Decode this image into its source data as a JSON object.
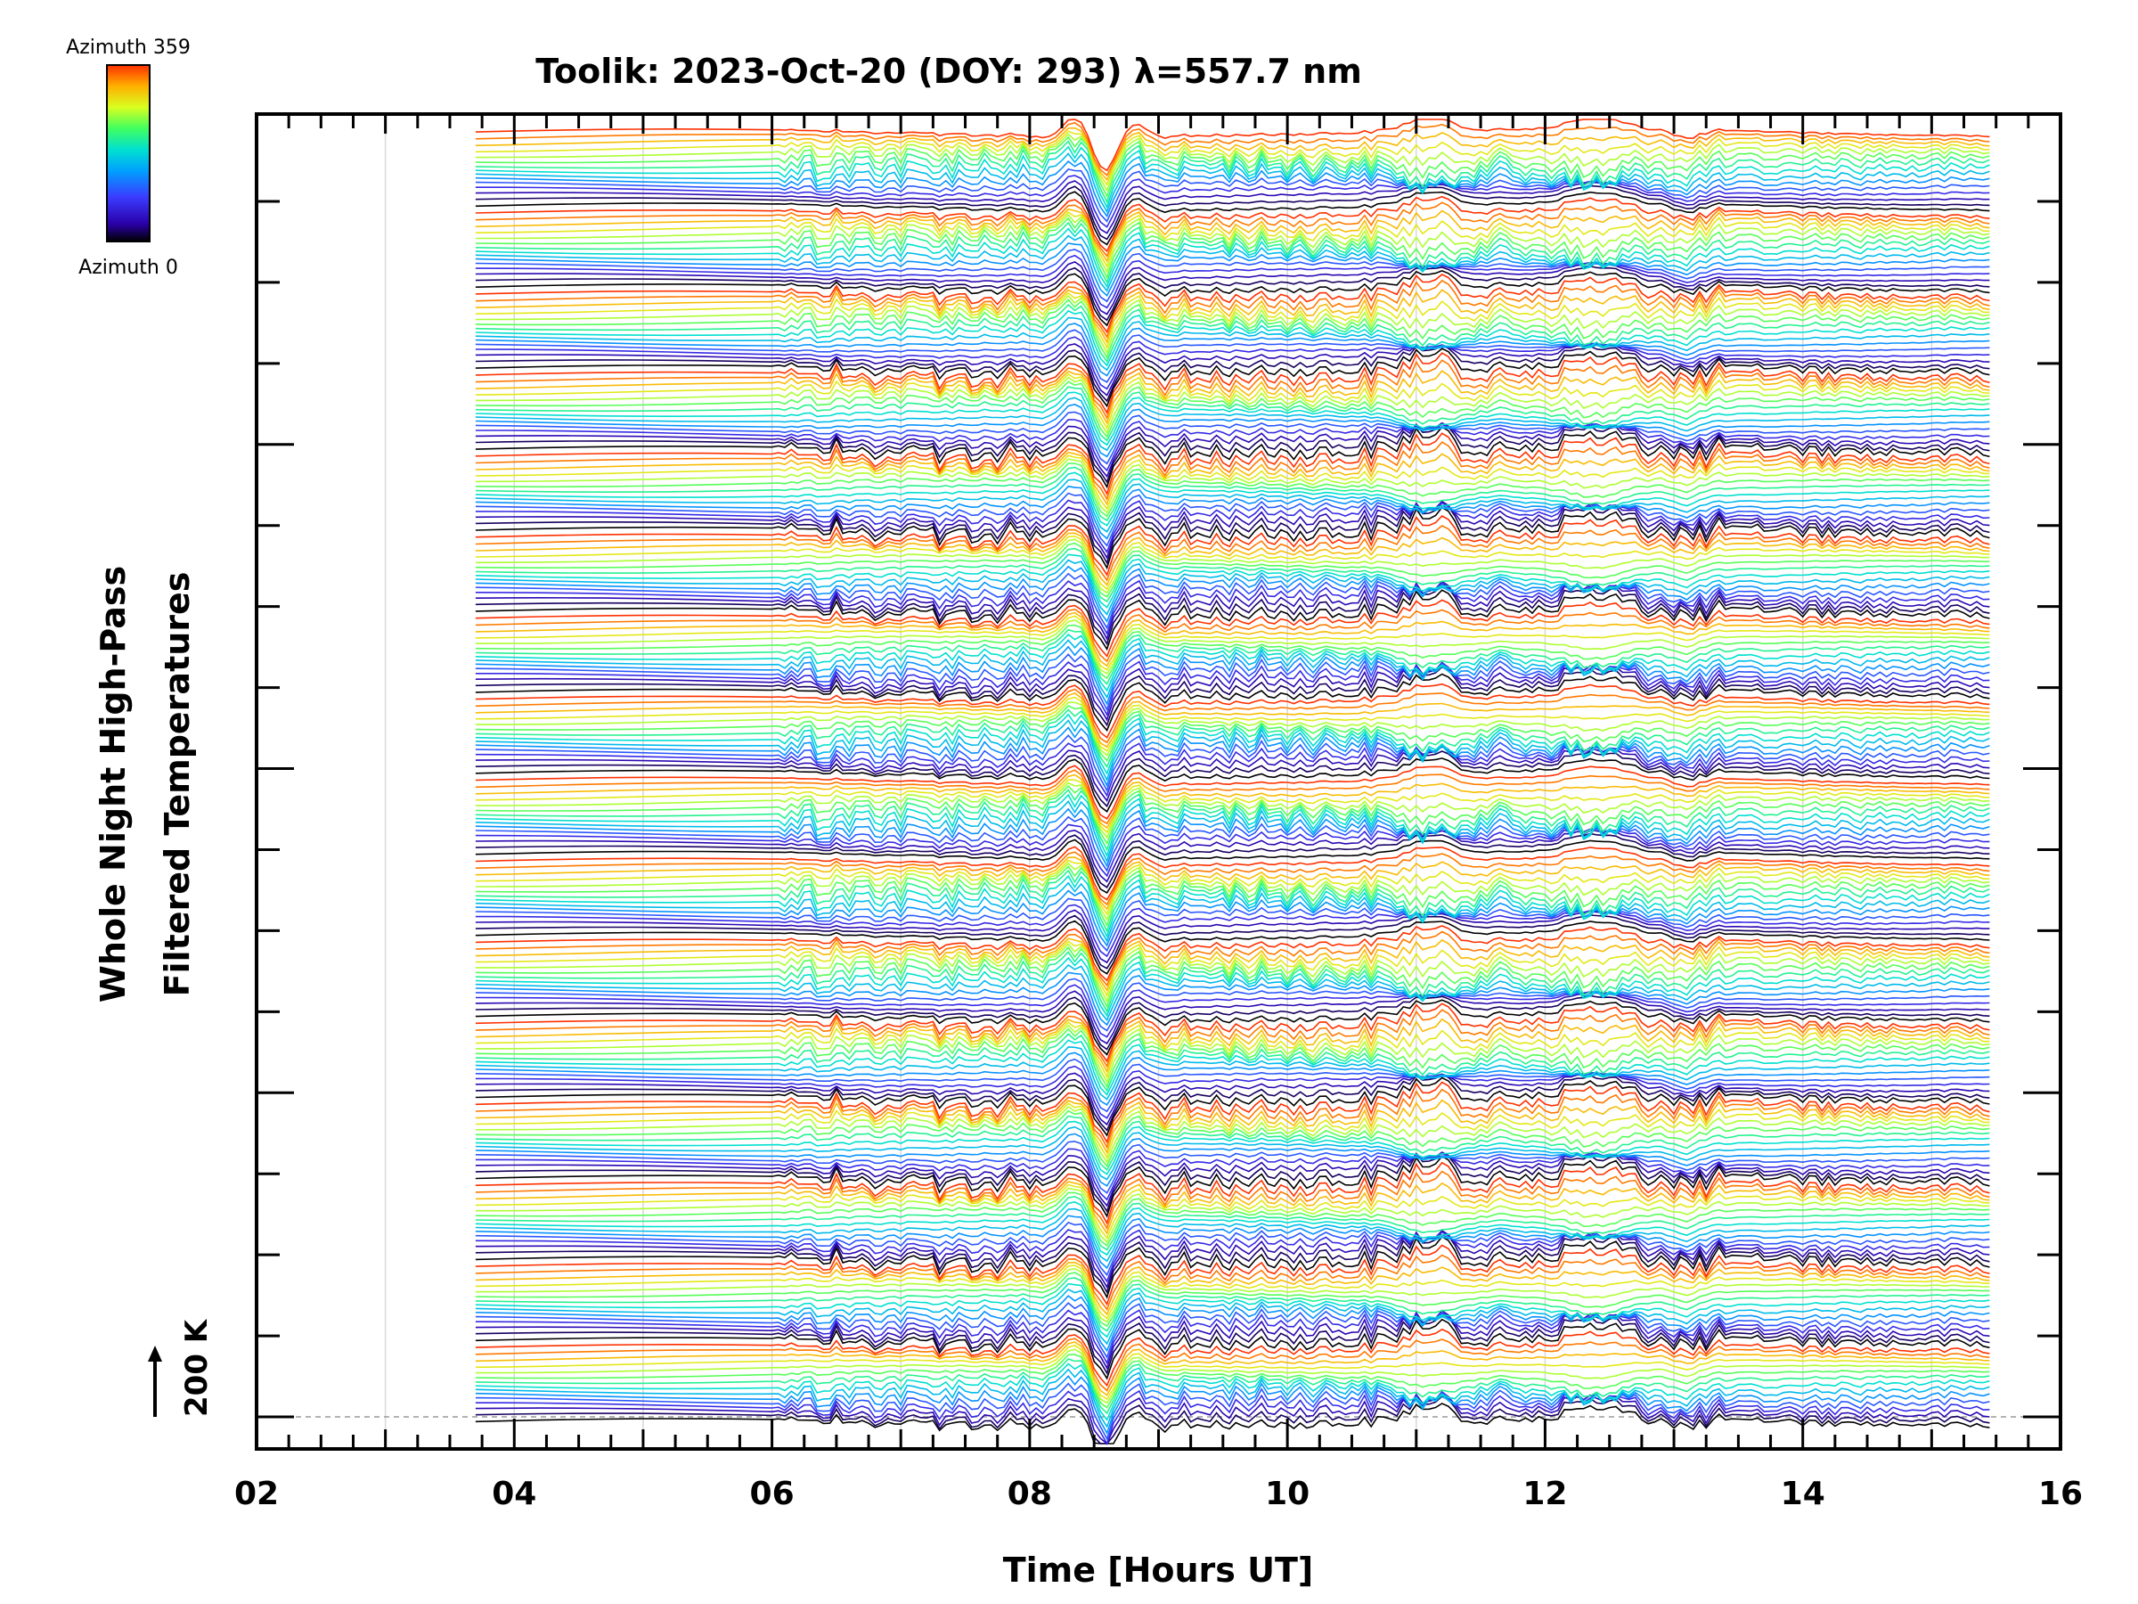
{
  "chart_data": {
    "type": "line",
    "title": "Toolik: 2023-Oct-20 (DOY: 293) λ=557.7 nm",
    "xlabel": "Time [Hours UT]",
    "ylabel_line1": "Whole Night High-Pass",
    "ylabel_line2": "Filtered Temperatures",
    "xlim": [
      2,
      16
    ],
    "x_tick_labels": [
      "02",
      "04",
      "06",
      "08",
      "10",
      "12",
      "14",
      "16"
    ],
    "data_x_range": [
      3.7,
      15.45
    ],
    "trace_count": 240,
    "offset_groups": 16,
    "scale_bar_label": "200 K",
    "colorbar": {
      "top_label": "Azimuth 359",
      "bottom_label": "Azimuth 0",
      "colormap": [
        "#000000",
        "#2a00a8",
        "#3b3bff",
        "#00a0ff",
        "#00e0d0",
        "#40ff60",
        "#d8ff20",
        "#ffb000",
        "#ff3000"
      ]
    },
    "grid": true
  }
}
